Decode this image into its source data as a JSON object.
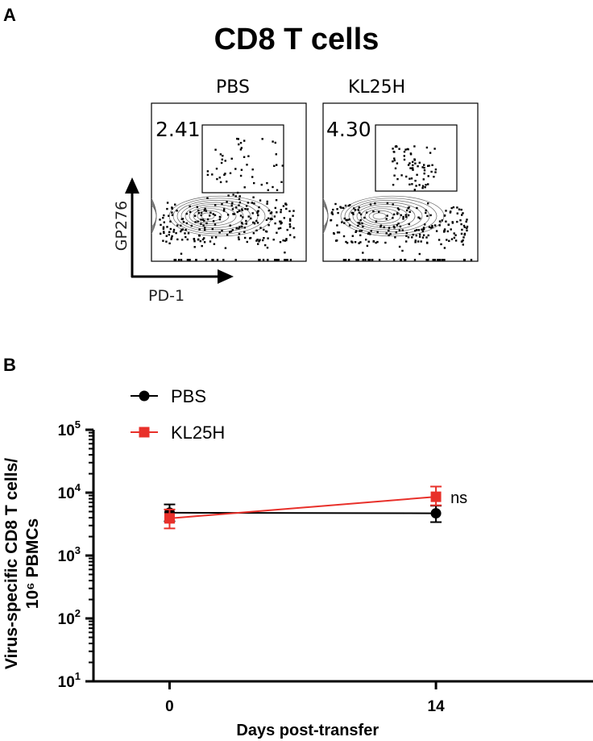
{
  "panel_a": {
    "letter": "A",
    "title": "CD8 T cells",
    "plots": [
      {
        "label": "PBS",
        "gate_percent": "2.41"
      },
      {
        "label": "KL25H",
        "gate_percent": "4.30"
      }
    ],
    "x_axis_label": "PD-1",
    "y_axis_label": "GP276"
  },
  "panel_b": {
    "letter": "B",
    "ns_label": "ns"
  },
  "chart_data": {
    "type": "line",
    "title": "",
    "xlabel": "Days post-transfer",
    "ylabel": "Virus-specific CD8 T cells/ 10⁶ PBMCs",
    "yscale": "log",
    "ylim": [
      10,
      100000
    ],
    "xlim": [
      -4,
      22
    ],
    "x_ticks": [
      0,
      14
    ],
    "y_ticks": [
      {
        "value": 10,
        "base": "10",
        "exp": "1"
      },
      {
        "value": 100,
        "base": "10",
        "exp": "2"
      },
      {
        "value": 1000,
        "base": "10",
        "exp": "3"
      },
      {
        "value": 10000,
        "base": "10",
        "exp": "4"
      },
      {
        "value": 100000,
        "base": "10",
        "exp": "5"
      }
    ],
    "legend_placement": "top-left",
    "series": [
      {
        "name": "PBS",
        "color": "#000000",
        "marker": "circle",
        "x": [
          0,
          14
        ],
        "y": [
          4800,
          4700
        ],
        "err_low": [
          3500,
          3400
        ],
        "err_high": [
          6500,
          6200
        ]
      },
      {
        "name": "KL25H",
        "color": "#e8302a",
        "marker": "square",
        "x": [
          0,
          14
        ],
        "y": [
          3900,
          8600
        ],
        "err_low": [
          2700,
          6300
        ],
        "err_high": [
          5400,
          12500
        ]
      }
    ],
    "annotations": [
      {
        "text": "ns",
        "x": 14,
        "y": 8600
      }
    ]
  }
}
